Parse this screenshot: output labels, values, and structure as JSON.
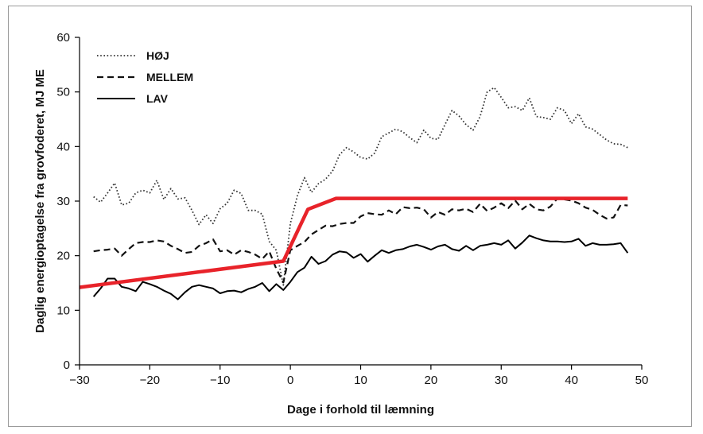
{
  "chart_data": {
    "type": "line",
    "title": "",
    "xlabel": "Dage i forhold til læmning",
    "ylabel": "Daglig energioptagelse fra grovfoderet, MJ ME",
    "xlim": [
      -30,
      50
    ],
    "ylim": [
      0,
      60
    ],
    "xticks": [
      -30,
      -20,
      -10,
      0,
      10,
      20,
      30,
      40,
      50
    ],
    "yticks": [
      0,
      10,
      20,
      30,
      40,
      50,
      60
    ],
    "xtick_labels": [
      "−30",
      "−20",
      "−10",
      "0",
      "10",
      "20",
      "30",
      "40",
      "50"
    ],
    "ytick_labels": [
      "0",
      "10",
      "20",
      "30",
      "40",
      "50",
      "60"
    ],
    "legend_position": "top-left",
    "series": [
      {
        "name": "HØJ",
        "style": "dotted",
        "color": "#333333",
        "points": [
          [
            -28,
            30.8
          ],
          [
            -27,
            29.8
          ],
          [
            -26,
            31.5
          ],
          [
            -25,
            33.3
          ],
          [
            -24,
            29.3
          ],
          [
            -23,
            29.6
          ],
          [
            -22,
            31.5
          ],
          [
            -21,
            32.0
          ],
          [
            -20,
            31.5
          ],
          [
            -19,
            33.8
          ],
          [
            -18,
            30.3
          ],
          [
            -17,
            32.3
          ],
          [
            -16,
            30.4
          ],
          [
            -15,
            30.6
          ],
          [
            -14,
            28.3
          ],
          [
            -13,
            25.7
          ],
          [
            -12,
            27.5
          ],
          [
            -11,
            25.9
          ],
          [
            -10,
            28.6
          ],
          [
            -9,
            29.6
          ],
          [
            -8,
            32.0
          ],
          [
            -7,
            31.4
          ],
          [
            -6,
            28.3
          ],
          [
            -5,
            28.3
          ],
          [
            -4,
            27.6
          ],
          [
            -3,
            22.6
          ],
          [
            -2,
            21.0
          ],
          [
            -1,
            14.6
          ],
          [
            0,
            25.9
          ],
          [
            1,
            31.0
          ],
          [
            2,
            34.3
          ],
          [
            3,
            31.6
          ],
          [
            4,
            33.2
          ],
          [
            5,
            34.0
          ],
          [
            6,
            35.5
          ],
          [
            7,
            38.5
          ],
          [
            8,
            39.8
          ],
          [
            9,
            39.0
          ],
          [
            10,
            38.0
          ],
          [
            11,
            37.7
          ],
          [
            12,
            38.8
          ],
          [
            13,
            41.8
          ],
          [
            14,
            42.5
          ],
          [
            15,
            43.2
          ],
          [
            16,
            42.7
          ],
          [
            17,
            41.6
          ],
          [
            18,
            40.7
          ],
          [
            19,
            43.0
          ],
          [
            20,
            41.5
          ],
          [
            21,
            41.3
          ],
          [
            22,
            44.0
          ],
          [
            23,
            46.6
          ],
          [
            24,
            45.6
          ],
          [
            25,
            44.0
          ],
          [
            26,
            43.0
          ],
          [
            27,
            45.5
          ],
          [
            28,
            50.0
          ],
          [
            29,
            50.8
          ],
          [
            30,
            49.0
          ],
          [
            31,
            47.1
          ],
          [
            32,
            47.3
          ],
          [
            33,
            46.6
          ],
          [
            34,
            48.9
          ],
          [
            35,
            45.5
          ],
          [
            36,
            45.3
          ],
          [
            37,
            45.0
          ],
          [
            38,
            47.1
          ],
          [
            39,
            46.6
          ],
          [
            40,
            44.2
          ],
          [
            41,
            46.0
          ],
          [
            42,
            43.6
          ],
          [
            43,
            43.2
          ],
          [
            44,
            42.2
          ],
          [
            45,
            41.2
          ],
          [
            46,
            40.5
          ],
          [
            47,
            40.4
          ],
          [
            48,
            39.8
          ]
        ]
      },
      {
        "name": "MELLEM",
        "style": "dashed",
        "color": "#111111",
        "points": [
          [
            -28,
            20.8
          ],
          [
            -27,
            21.0
          ],
          [
            -26,
            21.1
          ],
          [
            -25,
            21.3
          ],
          [
            -24,
            20.0
          ],
          [
            -23,
            21.2
          ],
          [
            -22,
            22.3
          ],
          [
            -21,
            22.5
          ],
          [
            -20,
            22.5
          ],
          [
            -19,
            22.8
          ],
          [
            -18,
            22.6
          ],
          [
            -17,
            21.8
          ],
          [
            -16,
            21.2
          ],
          [
            -15,
            20.5
          ],
          [
            -14,
            20.7
          ],
          [
            -13,
            21.8
          ],
          [
            -12,
            22.3
          ],
          [
            -11,
            23.0
          ],
          [
            -10,
            20.8
          ],
          [
            -9,
            21.0
          ],
          [
            -8,
            20.2
          ],
          [
            -7,
            21.0
          ],
          [
            -6,
            20.7
          ],
          [
            -5,
            20.2
          ],
          [
            -4,
            19.4
          ],
          [
            -3,
            20.8
          ],
          [
            -2,
            17.6
          ],
          [
            -1,
            15.1
          ],
          [
            0,
            21.0
          ],
          [
            1,
            21.8
          ],
          [
            2,
            22.5
          ],
          [
            3,
            23.9
          ],
          [
            4,
            24.7
          ],
          [
            5,
            25.5
          ],
          [
            6,
            25.4
          ],
          [
            7,
            25.8
          ],
          [
            8,
            26.0
          ],
          [
            9,
            26.0
          ],
          [
            10,
            27.2
          ],
          [
            11,
            27.8
          ],
          [
            12,
            27.6
          ],
          [
            13,
            27.5
          ],
          [
            14,
            28.3
          ],
          [
            15,
            27.6
          ],
          [
            16,
            28.9
          ],
          [
            17,
            28.7
          ],
          [
            18,
            28.8
          ],
          [
            19,
            28.5
          ],
          [
            20,
            27.0
          ],
          [
            21,
            28.0
          ],
          [
            22,
            27.5
          ],
          [
            23,
            28.5
          ],
          [
            24,
            28.3
          ],
          [
            25,
            28.6
          ],
          [
            26,
            28.0
          ],
          [
            27,
            29.5
          ],
          [
            28,
            28.2
          ],
          [
            29,
            28.8
          ],
          [
            30,
            29.6
          ],
          [
            31,
            28.7
          ],
          [
            32,
            30.1
          ],
          [
            33,
            28.5
          ],
          [
            34,
            29.5
          ],
          [
            35,
            28.5
          ],
          [
            36,
            28.3
          ],
          [
            37,
            29.0
          ],
          [
            38,
            30.5
          ],
          [
            39,
            30.3
          ],
          [
            40,
            30.1
          ],
          [
            41,
            29.6
          ],
          [
            42,
            28.8
          ],
          [
            43,
            28.4
          ],
          [
            44,
            27.5
          ],
          [
            45,
            26.8
          ],
          [
            46,
            27.0
          ],
          [
            47,
            29.3
          ],
          [
            48,
            29.2
          ]
        ]
      },
      {
        "name": "LAV",
        "style": "solid",
        "color": "#000000",
        "points": [
          [
            -28,
            12.5
          ],
          [
            -27,
            14.0
          ],
          [
            -26,
            15.8
          ],
          [
            -25,
            15.8
          ],
          [
            -24,
            14.3
          ],
          [
            -23,
            14.0
          ],
          [
            -22,
            13.5
          ],
          [
            -21,
            15.2
          ],
          [
            -20,
            14.8
          ],
          [
            -19,
            14.3
          ],
          [
            -18,
            13.6
          ],
          [
            -17,
            13.0
          ],
          [
            -16,
            12.0
          ],
          [
            -15,
            13.3
          ],
          [
            -14,
            14.3
          ],
          [
            -13,
            14.6
          ],
          [
            -12,
            14.3
          ],
          [
            -11,
            14.0
          ],
          [
            -10,
            13.1
          ],
          [
            -9,
            13.5
          ],
          [
            -8,
            13.6
          ],
          [
            -7,
            13.3
          ],
          [
            -6,
            13.9
          ],
          [
            -5,
            14.3
          ],
          [
            -4,
            15.0
          ],
          [
            -3,
            13.5
          ],
          [
            -2,
            14.8
          ],
          [
            -1,
            13.7
          ],
          [
            0,
            15.2
          ],
          [
            1,
            17.0
          ],
          [
            2,
            17.8
          ],
          [
            3,
            19.8
          ],
          [
            4,
            18.5
          ],
          [
            5,
            19.0
          ],
          [
            6,
            20.2
          ],
          [
            7,
            20.8
          ],
          [
            8,
            20.6
          ],
          [
            9,
            19.6
          ],
          [
            10,
            20.3
          ],
          [
            11,
            18.9
          ],
          [
            12,
            20.0
          ],
          [
            13,
            21.0
          ],
          [
            14,
            20.5
          ],
          [
            15,
            21.0
          ],
          [
            16,
            21.2
          ],
          [
            17,
            21.7
          ],
          [
            18,
            22.0
          ],
          [
            19,
            21.6
          ],
          [
            20,
            21.1
          ],
          [
            21,
            21.7
          ],
          [
            22,
            22.0
          ],
          [
            23,
            21.2
          ],
          [
            24,
            20.9
          ],
          [
            25,
            21.8
          ],
          [
            26,
            21.0
          ],
          [
            27,
            21.8
          ],
          [
            28,
            22.0
          ],
          [
            29,
            22.3
          ],
          [
            30,
            22.0
          ],
          [
            31,
            22.8
          ],
          [
            32,
            21.3
          ],
          [
            33,
            22.4
          ],
          [
            34,
            23.7
          ],
          [
            35,
            23.2
          ],
          [
            36,
            22.8
          ],
          [
            37,
            22.6
          ],
          [
            38,
            22.6
          ],
          [
            39,
            22.5
          ],
          [
            40,
            22.6
          ],
          [
            41,
            23.1
          ],
          [
            42,
            21.8
          ],
          [
            43,
            22.3
          ],
          [
            44,
            22.0
          ],
          [
            45,
            22.0
          ],
          [
            46,
            22.1
          ],
          [
            47,
            22.3
          ],
          [
            48,
            20.5
          ]
        ]
      },
      {
        "name": "",
        "style": "solid-thick",
        "color": "#e8232a",
        "points": [
          [
            -30,
            14.2
          ],
          [
            -1,
            19.0
          ],
          [
            2.5,
            28.5
          ],
          [
            6.5,
            30.5
          ],
          [
            48,
            30.5
          ]
        ]
      }
    ]
  }
}
